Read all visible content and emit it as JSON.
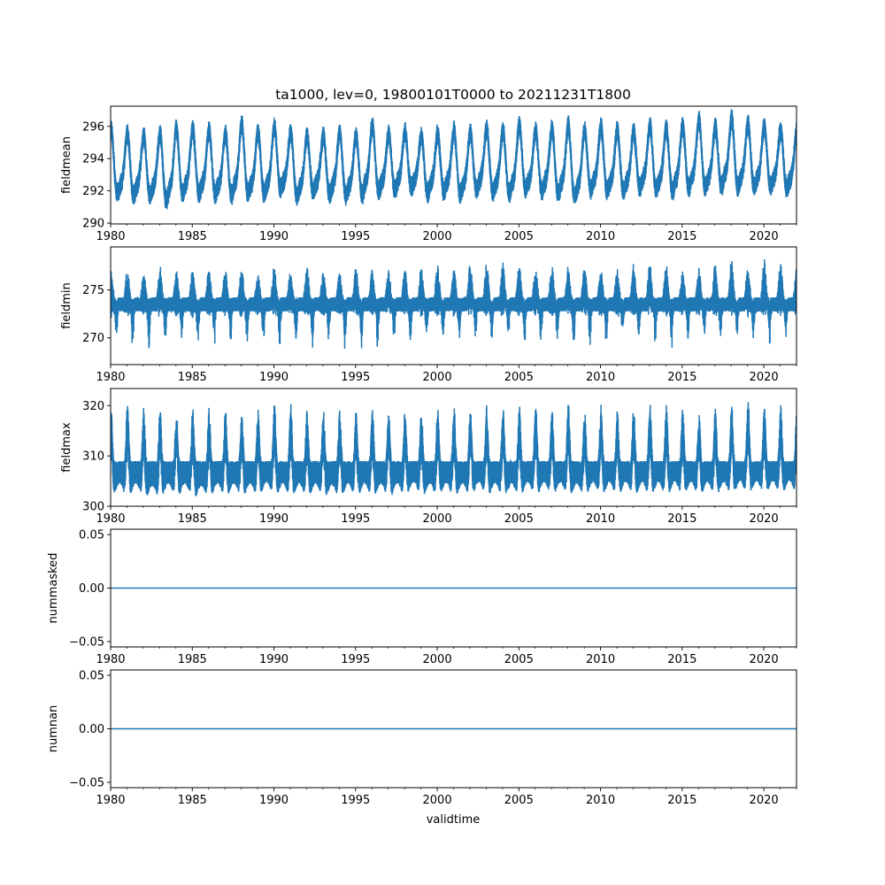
{
  "chart_data": {
    "type": "line",
    "title": "ta1000, lev=0, 19800101T0000 to 20211231T1800",
    "xlabel": "validtime",
    "xlim": [
      1980,
      2022
    ],
    "xticks": [
      "1980",
      "1985",
      "1990",
      "1995",
      "2000",
      "2005",
      "2010",
      "2015",
      "2020"
    ],
    "line_color": "#1f77b4",
    "years": [
      1980,
      1981,
      1982,
      1983,
      1984,
      1985,
      1986,
      1987,
      1988,
      1989,
      1990,
      1991,
      1992,
      1993,
      1994,
      1995,
      1996,
      1997,
      1998,
      1999,
      2000,
      2001,
      2002,
      2003,
      2004,
      2005,
      2006,
      2007,
      2008,
      2009,
      2010,
      2011,
      2012,
      2013,
      2014,
      2015,
      2016,
      2017,
      2018,
      2019,
      2020,
      2021
    ],
    "panels": [
      {
        "ylabel": "fieldmean",
        "ylim": [
          289.95,
          297.25
        ],
        "yticks": [
          "290",
          "292",
          "294",
          "296"
        ],
        "ytick_values": [
          290,
          292,
          294,
          296
        ],
        "annual_max": [
          296.4,
          296.1,
          296.0,
          296.1,
          296.4,
          296.4,
          296.3,
          296.1,
          296.7,
          296.2,
          296.5,
          296.2,
          296.0,
          296.0,
          296.2,
          296.0,
          296.6,
          296.1,
          296.2,
          296.0,
          296.1,
          296.3,
          296.2,
          296.4,
          296.3,
          296.6,
          296.3,
          296.4,
          296.6,
          296.3,
          296.5,
          296.3,
          296.2,
          296.6,
          296.4,
          296.6,
          296.9,
          296.5,
          297.0,
          296.7,
          296.6,
          296.3
        ],
        "annual_min": [
          290.6,
          290.5,
          290.5,
          290.2,
          290.6,
          290.6,
          290.6,
          290.5,
          290.6,
          290.6,
          290.9,
          290.5,
          290.8,
          290.6,
          290.5,
          290.6,
          290.8,
          290.9,
          291.1,
          290.7,
          290.8,
          290.6,
          290.9,
          290.7,
          290.6,
          290.9,
          290.8,
          290.6,
          290.4,
          290.9,
          290.8,
          290.8,
          291.0,
          290.9,
          290.8,
          291.0,
          291.0,
          291.1,
          291.0,
          291.0,
          291.1,
          291.0
        ],
        "noise": 1.4
      },
      {
        "ylabel": "fieldmin",
        "ylim": [
          267.2,
          279.5
        ],
        "yticks": [
          "270",
          "275"
        ],
        "ytick_values": [
          270,
          275
        ],
        "annual_max": [
          278.0,
          277.8,
          277.5,
          278.1,
          278.0,
          277.8,
          278.2,
          277.9,
          278.1,
          277.6,
          278.3,
          278.0,
          278.2,
          277.7,
          277.5,
          278.3,
          277.8,
          277.9,
          278.0,
          278.2,
          278.3,
          278.1,
          278.7,
          278.6,
          278.7,
          278.4,
          278.1,
          278.2,
          278.3,
          278.4,
          278.0,
          277.8,
          278.3,
          278.7,
          278.3,
          278.0,
          278.2,
          278.4,
          278.7,
          278.1,
          278.8,
          278.6
        ],
        "annual_min": [
          268.8,
          268.5,
          268.1,
          268.6,
          269.0,
          268.3,
          268.8,
          268.9,
          268.5,
          268.7,
          268.6,
          268.5,
          268.8,
          268.9,
          268.3,
          267.9,
          268.1,
          268.9,
          268.6,
          269.0,
          269.0,
          268.8,
          269.1,
          268.9,
          269.0,
          268.5,
          268.7,
          268.9,
          268.2,
          268.8,
          269.0,
          269.1,
          268.9,
          268.7,
          268.6,
          269.2,
          269.0,
          269.1,
          269.2,
          269.1,
          269.0,
          269.3
        ],
        "noise": 5.0
      },
      {
        "ylabel": "fieldmax",
        "ylim": [
          300,
          323.4
        ],
        "yticks": [
          "300",
          "310",
          "320"
        ],
        "ytick_values": [
          300,
          310,
          320
        ],
        "annual_max": [
          320.8,
          321.4,
          320.4,
          320.5,
          319.6,
          320.5,
          320.2,
          320.2,
          319.5,
          319.6,
          321.8,
          321.3,
          320.0,
          320.2,
          320.4,
          320.0,
          320.5,
          320.3,
          320.2,
          319.8,
          320.6,
          320.4,
          320.8,
          320.2,
          320.5,
          320.8,
          321.0,
          320.5,
          321.3,
          320.2,
          320.8,
          319.6,
          320.5,
          321.0,
          320.4,
          320.2,
          319.5,
          320.2,
          321.5,
          322.5,
          320.6,
          320.8
        ],
        "annual_min": [
          301.5,
          301.5,
          301.0,
          301.5,
          301.5,
          301.0,
          301.5,
          301.5,
          301.5,
          301.8,
          301.5,
          301.5,
          301.5,
          301.2,
          301.5,
          301.5,
          301.5,
          301.5,
          301.8,
          301.5,
          301.6,
          301.5,
          301.8,
          301.6,
          301.5,
          301.8,
          301.8,
          301.7,
          301.5,
          301.8,
          301.8,
          301.8,
          301.7,
          301.8,
          301.8,
          301.8,
          301.8,
          301.8,
          302.0,
          302.0,
          302.0,
          302.0
        ],
        "noise": 7.0
      },
      {
        "ylabel": "nummasked",
        "ylim": [
          -0.055,
          0.055
        ],
        "yticks": [
          "−0.05",
          "0.00",
          "0.05"
        ],
        "ytick_values": [
          -0.05,
          0,
          0.05
        ],
        "constant_value": 0
      },
      {
        "ylabel": "numnan",
        "ylim": [
          -0.055,
          0.055
        ],
        "yticks": [
          "−0.05",
          "0.00",
          "0.05"
        ],
        "ytick_values": [
          -0.05,
          0,
          0.05
        ],
        "constant_value": 0
      }
    ]
  }
}
